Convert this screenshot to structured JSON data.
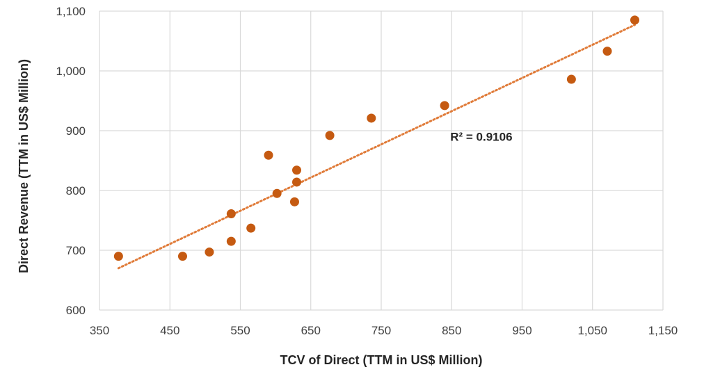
{
  "chart_data": {
    "type": "scatter",
    "title": "",
    "xlabel": "TCV of Direct (TTM in US$ Million)",
    "ylabel": "Direct Revenue (TTM in US$ Million)",
    "xlim": [
      350,
      1150
    ],
    "ylim": [
      600,
      1100
    ],
    "x_ticks": [
      350,
      450,
      550,
      650,
      750,
      850,
      950,
      1050,
      1150
    ],
    "x_tick_labels": [
      "350",
      "450",
      "550",
      "650",
      "750",
      "850",
      "950",
      "1,050",
      "1,150"
    ],
    "y_ticks": [
      600,
      700,
      800,
      900,
      1000,
      1100
    ],
    "y_tick_labels": [
      "600",
      "700",
      "800",
      "900",
      "1,000",
      "1,100"
    ],
    "grid": true,
    "marker_color": "#C55A11",
    "trendline_color": "#E07B39",
    "points": [
      {
        "x": 377,
        "y": 690
      },
      {
        "x": 468,
        "y": 690
      },
      {
        "x": 506,
        "y": 697
      },
      {
        "x": 537,
        "y": 715
      },
      {
        "x": 537,
        "y": 761
      },
      {
        "x": 565,
        "y": 737
      },
      {
        "x": 590,
        "y": 859
      },
      {
        "x": 602,
        "y": 795
      },
      {
        "x": 627,
        "y": 781
      },
      {
        "x": 630,
        "y": 834
      },
      {
        "x": 630,
        "y": 814
      },
      {
        "x": 677,
        "y": 892
      },
      {
        "x": 736,
        "y": 921
      },
      {
        "x": 840,
        "y": 942
      },
      {
        "x": 1020,
        "y": 986
      },
      {
        "x": 1071,
        "y": 1033
      },
      {
        "x": 1110,
        "y": 1085
      }
    ],
    "trendline": {
      "type": "linear",
      "x_start": 377,
      "x_end": 1110,
      "y_start": 670,
      "y_end": 1077
    },
    "annotation": {
      "text": "R² = 0.9106",
      "x": 848,
      "y": 890
    }
  }
}
